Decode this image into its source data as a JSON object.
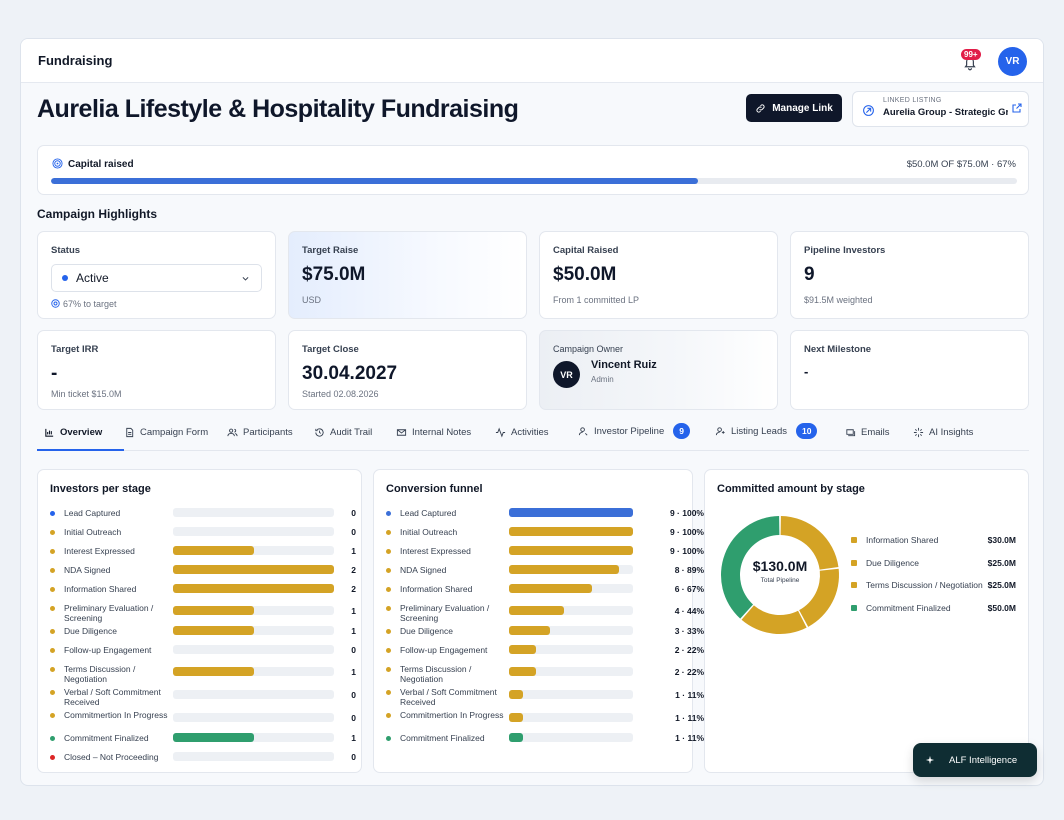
{
  "header": {
    "title": "Fundraising",
    "notif_badge": "99+",
    "avatar": "VR"
  },
  "page": {
    "title": "Aurelia Lifestyle & Hospitality Fundraising",
    "manage_link": "Manage Link",
    "linked_label": "LINKED LISTING",
    "linked_value": "Aurelia Group - Strategic Gr..."
  },
  "capital": {
    "label": "Capital raised",
    "amount": "$50.0M OF $75.0M · 67%",
    "progress": 0.67
  },
  "highlights": {
    "title": "Campaign Highlights",
    "status_label": "Status",
    "status_value": "Active",
    "status_sub": "67% to target",
    "target_raise_label": "Target Raise",
    "target_raise": "$75.0M",
    "target_raise_sub": "USD",
    "capital_raised_label": "Capital Raised",
    "capital_raised": "$50.0M",
    "capital_raised_sub": "From 1 committed LP",
    "pipeline_label": "Pipeline Investors",
    "pipeline": "9",
    "pipeline_sub": "$91.5M weighted",
    "irr_label": "Target IRR",
    "irr": "-",
    "irr_sub": "Min ticket $15.0M",
    "close_label": "Target Close",
    "close": "30.04.2027",
    "close_sub": "Started 02.08.2026",
    "owner_label": "Campaign Owner",
    "owner_initials": "VR",
    "owner_name": "Vincent Ruiz",
    "owner_role": "Admin",
    "milestone_label": "Next Milestone",
    "milestone": "-"
  },
  "tabs": [
    {
      "label": "Overview"
    },
    {
      "label": "Campaign Form"
    },
    {
      "label": "Participants"
    },
    {
      "label": "Audit Trail"
    },
    {
      "label": "Internal Notes"
    },
    {
      "label": "Activities"
    },
    {
      "label": "Investor Pipeline",
      "count": "9"
    },
    {
      "label": "Listing Leads",
      "count": "10"
    },
    {
      "label": "Emails"
    },
    {
      "label": "AI Insights"
    }
  ],
  "investors_per_stage": {
    "title": "Investors per stage",
    "max": 2,
    "rows": [
      {
        "label": "Lead Captured",
        "value": 0,
        "display": "0",
        "color": "#2563eb"
      },
      {
        "label": "Initial Outreach",
        "value": 0,
        "display": "0",
        "color": "#d4a325"
      },
      {
        "label": "Interest Expressed",
        "value": 1,
        "display": "1",
        "color": "#d4a325"
      },
      {
        "label": "NDA Signed",
        "value": 2,
        "display": "2",
        "color": "#d4a325"
      },
      {
        "label": "Information Shared",
        "value": 2,
        "display": "2",
        "color": "#d4a325"
      },
      {
        "label": "Preliminary Evaluation / Screening",
        "value": 1,
        "display": "1",
        "color": "#d4a325"
      },
      {
        "label": "Due Diligence",
        "value": 1,
        "display": "1",
        "color": "#d4a325"
      },
      {
        "label": "Follow-up Engagement",
        "value": 0,
        "display": "0",
        "color": "#d4a325"
      },
      {
        "label": "Terms Discussion / Negotiation",
        "value": 1,
        "display": "1",
        "color": "#d4a325"
      },
      {
        "label": "Verbal / Soft Commitment Received",
        "value": 0,
        "display": "0",
        "color": "#d4a325"
      },
      {
        "label": "Commitmertion In Progress",
        "value": 0,
        "display": "0",
        "color": "#d4a325"
      },
      {
        "label": "Commitment Finalized",
        "value": 1,
        "display": "1",
        "color": "#2f9e6e"
      },
      {
        "label": "Closed – Not Proceeding",
        "value": 0,
        "display": "0",
        "color": "#dc2626"
      }
    ]
  },
  "conversion_funnel": {
    "title": "Conversion funnel",
    "max": 100,
    "rows": [
      {
        "label": "Lead Captured",
        "value": 100,
        "display": "9 · 100%",
        "color": "#3b6fd8"
      },
      {
        "label": "Initial Outreach",
        "value": 100,
        "display": "9 · 100%",
        "color": "#d4a325"
      },
      {
        "label": "Interest Expressed",
        "value": 100,
        "display": "9 · 100%",
        "color": "#d4a325"
      },
      {
        "label": "NDA Signed",
        "value": 89,
        "display": "8 · 89%",
        "color": "#d4a325"
      },
      {
        "label": "Information Shared",
        "value": 67,
        "display": "6 · 67%",
        "color": "#d4a325"
      },
      {
        "label": "Preliminary Evaluation / Screening",
        "value": 44,
        "display": "4 · 44%",
        "color": "#d4a325"
      },
      {
        "label": "Due Diligence",
        "value": 33,
        "display": "3 · 33%",
        "color": "#d4a325"
      },
      {
        "label": "Follow-up Engagement",
        "value": 22,
        "display": "2 · 22%",
        "color": "#d4a325"
      },
      {
        "label": "Terms Discussion / Negotiation",
        "value": 22,
        "display": "2 · 22%",
        "color": "#d4a325"
      },
      {
        "label": "Verbal / Soft Commitment Received",
        "value": 11,
        "display": "1 · 11%",
        "color": "#d4a325"
      },
      {
        "label": "Commitmertion In Progress",
        "value": 11,
        "display": "1 · 11%",
        "color": "#d4a325"
      },
      {
        "label": "Commitment Finalized",
        "value": 11,
        "display": "1 · 11%",
        "color": "#2f9e6e"
      }
    ]
  },
  "committed": {
    "title": "Committed amount by stage",
    "center_value": "$130.0M",
    "center_label": "Total Pipeline",
    "slices": [
      {
        "label": "Information Shared",
        "value": 30,
        "display": "$30.0M",
        "color": "#d4a325"
      },
      {
        "label": "Due Diligence",
        "value": 25,
        "display": "$25.0M",
        "color": "#d4a325"
      },
      {
        "label": "Terms Discussion / Negotiation",
        "value": 25,
        "display": "$25.0M",
        "color": "#d4a325"
      },
      {
        "label": "Commitment Finalized",
        "value": 50,
        "display": "$50.0M",
        "color": "#2f9e6e"
      }
    ]
  },
  "alf": {
    "label": "ALF Intelligence"
  }
}
